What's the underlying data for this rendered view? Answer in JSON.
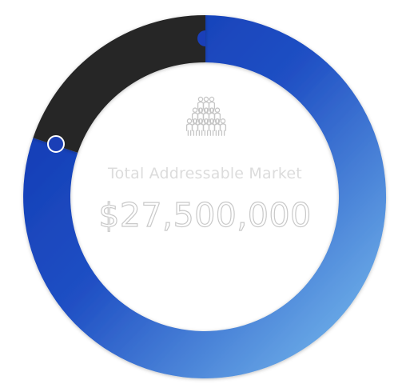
{
  "header": {
    "label": "Total Addressable Market",
    "value": "$27,500,000"
  },
  "icon": "people-pyramid-icon",
  "ring": {
    "segments": [
      {
        "name": "highlight",
        "color": "#262626",
        "share_of_ring": 0.16
      },
      {
        "name": "remainder",
        "color_start": "#0f35b0",
        "color_end": "#7ec2f0",
        "share_of_ring": 0.84
      }
    ]
  }
}
